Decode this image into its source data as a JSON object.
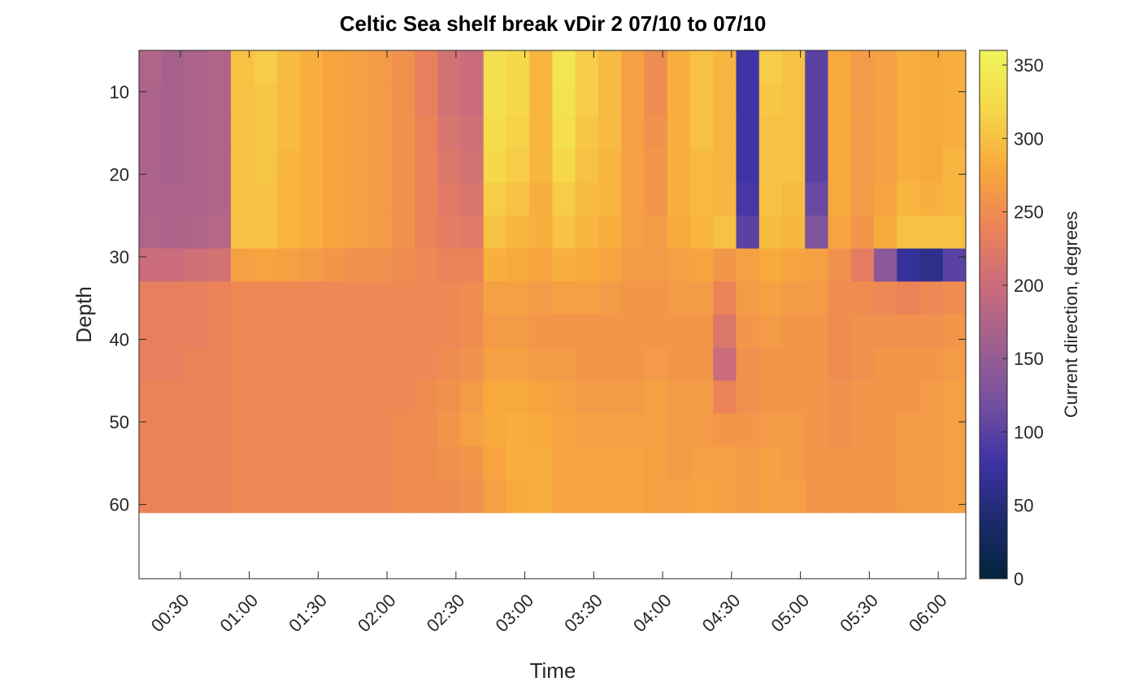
{
  "chart_data": {
    "type": "heatmap",
    "title": "Celtic Sea shelf break vDir 2 07/10 to 07/10",
    "x_label": "Time",
    "y_label": "Depth",
    "colorbar_label": "Current direction, degrees",
    "x": [
      17,
      27,
      37,
      47,
      57,
      67,
      77,
      87,
      97,
      107,
      117,
      127,
      137,
      147,
      157,
      167,
      177,
      187,
      197,
      207,
      217,
      227,
      237,
      247,
      257,
      267,
      277,
      287,
      297,
      307,
      317,
      327,
      337,
      347,
      357,
      367
    ],
    "y": [
      7,
      11,
      15,
      19,
      23,
      27,
      31,
      35,
      39,
      43,
      47,
      51,
      55,
      59
    ],
    "z": [
      [
        175,
        165,
        170,
        175,
        300,
        310,
        295,
        285,
        275,
        270,
        265,
        255,
        235,
        210,
        200,
        330,
        320,
        290,
        340,
        310,
        295,
        270,
        250,
        285,
        300,
        290,
        80,
        310,
        300,
        100,
        280,
        265,
        270,
        285,
        280,
        285
      ],
      [
        170,
        165,
        170,
        175,
        300,
        305,
        295,
        285,
        275,
        270,
        265,
        255,
        235,
        210,
        200,
        330,
        320,
        290,
        335,
        310,
        295,
        270,
        250,
        285,
        300,
        290,
        80,
        305,
        300,
        100,
        280,
        265,
        270,
        285,
        280,
        285
      ],
      [
        170,
        165,
        170,
        175,
        300,
        305,
        295,
        285,
        275,
        270,
        265,
        255,
        240,
        215,
        205,
        325,
        315,
        290,
        330,
        305,
        295,
        270,
        255,
        285,
        300,
        290,
        80,
        300,
        300,
        100,
        280,
        265,
        270,
        285,
        280,
        285
      ],
      [
        170,
        165,
        170,
        175,
        300,
        305,
        290,
        285,
        275,
        270,
        265,
        255,
        240,
        220,
        210,
        320,
        310,
        290,
        320,
        300,
        290,
        270,
        260,
        285,
        295,
        290,
        80,
        300,
        300,
        100,
        280,
        265,
        270,
        285,
        280,
        290
      ],
      [
        170,
        170,
        170,
        175,
        300,
        300,
        290,
        285,
        275,
        270,
        265,
        255,
        240,
        225,
        215,
        310,
        300,
        285,
        310,
        295,
        290,
        270,
        260,
        285,
        295,
        290,
        85,
        300,
        295,
        110,
        280,
        265,
        275,
        290,
        285,
        290
      ],
      [
        175,
        170,
        175,
        180,
        300,
        300,
        290,
        285,
        275,
        270,
        265,
        255,
        240,
        230,
        225,
        300,
        290,
        285,
        300,
        290,
        285,
        270,
        265,
        280,
        290,
        300,
        100,
        295,
        290,
        130,
        275,
        260,
        280,
        300,
        300,
        300
      ],
      [
        200,
        200,
        205,
        210,
        270,
        275,
        270,
        265,
        260,
        255,
        255,
        250,
        245,
        240,
        240,
        285,
        280,
        275,
        285,
        280,
        275,
        265,
        265,
        270,
        275,
        260,
        270,
        280,
        275,
        270,
        255,
        230,
        140,
        70,
        60,
        100
      ],
      [
        235,
        235,
        235,
        240,
        245,
        245,
        245,
        245,
        245,
        245,
        245,
        245,
        245,
        245,
        250,
        270,
        270,
        265,
        270,
        270,
        265,
        260,
        260,
        265,
        265,
        240,
        265,
        270,
        265,
        265,
        250,
        250,
        245,
        240,
        245,
        250
      ],
      [
        235,
        235,
        235,
        240,
        245,
        245,
        245,
        245,
        245,
        245,
        245,
        245,
        245,
        245,
        250,
        265,
        265,
        260,
        260,
        260,
        260,
        260,
        260,
        260,
        260,
        220,
        260,
        265,
        260,
        260,
        250,
        255,
        255,
        255,
        255,
        260
      ],
      [
        235,
        235,
        240,
        240,
        245,
        245,
        245,
        245,
        245,
        245,
        245,
        245,
        245,
        250,
        255,
        270,
        270,
        265,
        265,
        260,
        260,
        260,
        265,
        260,
        260,
        200,
        255,
        260,
        260,
        260,
        250,
        255,
        260,
        260,
        260,
        265
      ],
      [
        240,
        240,
        240,
        240,
        245,
        245,
        245,
        245,
        245,
        245,
        245,
        245,
        250,
        255,
        265,
        280,
        280,
        275,
        270,
        265,
        265,
        265,
        270,
        265,
        265,
        240,
        255,
        260,
        260,
        260,
        255,
        260,
        260,
        260,
        265,
        270
      ],
      [
        240,
        240,
        240,
        240,
        245,
        245,
        245,
        245,
        245,
        245,
        245,
        250,
        250,
        260,
        270,
        280,
        285,
        280,
        275,
        270,
        270,
        270,
        270,
        265,
        265,
        260,
        260,
        265,
        265,
        260,
        255,
        260,
        260,
        265,
        265,
        270
      ],
      [
        240,
        240,
        240,
        240,
        245,
        245,
        245,
        245,
        245,
        245,
        245,
        250,
        250,
        255,
        260,
        275,
        285,
        285,
        275,
        275,
        275,
        275,
        270,
        265,
        270,
        270,
        265,
        270,
        265,
        260,
        260,
        260,
        260,
        265,
        265,
        270
      ],
      [
        240,
        240,
        240,
        240,
        245,
        245,
        245,
        245,
        245,
        245,
        245,
        250,
        250,
        250,
        255,
        270,
        280,
        285,
        275,
        275,
        275,
        275,
        270,
        270,
        275,
        270,
        265,
        270,
        270,
        260,
        260,
        260,
        260,
        265,
        265,
        270
      ]
    ],
    "xlim": [
      12,
      372
    ],
    "ylim": [
      5,
      69
    ],
    "y_reversed": true,
    "xticks": [
      {
        "value": 30,
        "label": "00:30"
      },
      {
        "value": 60,
        "label": "01:00"
      },
      {
        "value": 90,
        "label": "01:30"
      },
      {
        "value": 120,
        "label": "02:00"
      },
      {
        "value": 150,
        "label": "02:30"
      },
      {
        "value": 180,
        "label": "03:00"
      },
      {
        "value": 210,
        "label": "03:30"
      },
      {
        "value": 240,
        "label": "04:00"
      },
      {
        "value": 270,
        "label": "04:30"
      },
      {
        "value": 300,
        "label": "05:00"
      },
      {
        "value": 330,
        "label": "05:30"
      },
      {
        "value": 360,
        "label": "06:00"
      }
    ],
    "yticks": [
      10,
      20,
      30,
      40,
      50,
      60
    ],
    "clim": [
      0,
      360
    ],
    "cticks": [
      0,
      50,
      100,
      150,
      200,
      250,
      300,
      350
    ],
    "colormap": [
      "#03233a",
      "#1c2a6e",
      "#3f33a5",
      "#7550a0",
      "#a0608f",
      "#cb6c7c",
      "#ec8358",
      "#f8a93c",
      "#f6d84a",
      "#eff45a"
    ]
  }
}
